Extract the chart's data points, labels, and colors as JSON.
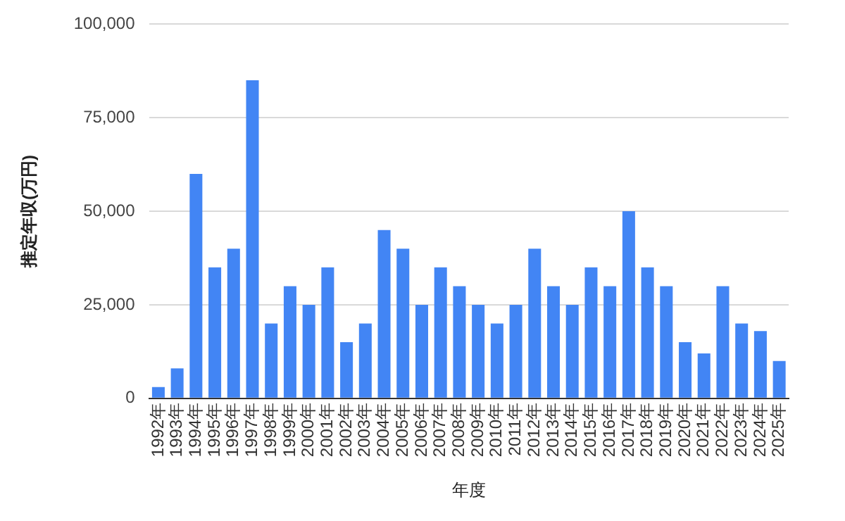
{
  "chart_data": {
    "type": "bar",
    "xlabel": "年度",
    "ylabel": "推定年収(万円)",
    "categories": [
      "1992年",
      "1993年",
      "1994年",
      "1995年",
      "1996年",
      "1997年",
      "1998年",
      "1999年",
      "2000年",
      "2001年",
      "2002年",
      "2003年",
      "2004年",
      "2005年",
      "2006年",
      "2007年",
      "2008年",
      "2009年",
      "2010年",
      "2011年",
      "2012年",
      "2013年",
      "2014年",
      "2015年",
      "2016年",
      "2017年",
      "2018年",
      "2019年",
      "2020年",
      "2021年",
      "2022年",
      "2023年",
      "2024年",
      "2025年"
    ],
    "values": [
      3000,
      8000,
      60000,
      35000,
      40000,
      85000,
      20000,
      30000,
      25000,
      35000,
      15000,
      20000,
      45000,
      40000,
      25000,
      35000,
      30000,
      25000,
      20000,
      25000,
      40000,
      30000,
      25000,
      35000,
      30000,
      50000,
      35000,
      30000,
      15000,
      12000,
      30000,
      20000,
      18000,
      10000
    ],
    "color": "#4285f4",
    "ylim": [
      0,
      100000
    ],
    "yticks": [
      {
        "value": 0,
        "label": "0"
      },
      {
        "value": 25000,
        "label": "25,000"
      },
      {
        "value": 50000,
        "label": "50,000"
      },
      {
        "value": 75000,
        "label": "75,000"
      },
      {
        "value": 100000,
        "label": "100,000"
      }
    ],
    "grid": "y",
    "legend": false
  }
}
